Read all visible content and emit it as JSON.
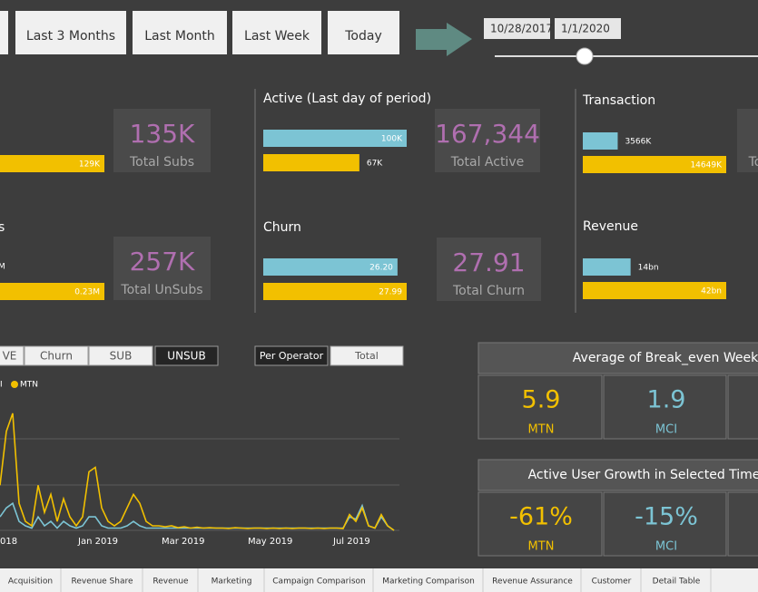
{
  "filters": [
    "Last 3 Months",
    "Last Month",
    "Last Week",
    "Today"
  ],
  "date_range": {
    "start": "10/28/2017",
    "end": "1/1/2020"
  },
  "left_kpis": [
    {
      "bar_labels": [
        "129K"
      ],
      "card_value": "135K",
      "card_label": "Total Subs"
    },
    {
      "title": "s",
      "bar_labels": [
        "M",
        "0.23M"
      ],
      "card_value": "257K",
      "card_label": "Total UnSubs"
    }
  ],
  "kpis": [
    {
      "title": "Active (Last day of period)",
      "values": [
        100000,
        67000
      ],
      "value_labels": [
        "100K",
        "67K"
      ],
      "card_value": "167,344",
      "card_label": "Total Active"
    },
    {
      "title": "Churn",
      "values": [
        26.2,
        27.99
      ],
      "value_labels": [
        "26.20",
        "27.99"
      ],
      "card_value": "27.91",
      "card_label": "Total Churn"
    },
    {
      "title": "Transaction",
      "values": [
        3566000,
        14649000
      ],
      "value_labels": [
        "3566K",
        "14649K"
      ],
      "card_label": "To"
    },
    {
      "title": "Revenue",
      "values": [
        14000000000,
        42000000000
      ],
      "value_labels": [
        "14bn",
        "42bn"
      ]
    }
  ],
  "metric_tabs": [
    "VE",
    "Churn",
    "SUB",
    "UNSUB"
  ],
  "view_tabs": [
    "Per Operator",
    "Total"
  ],
  "chart_data": {
    "type": "line",
    "ylim": [
      0,
      2.9
    ],
    "xtick_labels": [
      "018",
      "Jan 2019",
      "Mar 2019",
      "May 2019",
      "Jul 2019"
    ],
    "series": [
      {
        "name": "MCI",
        "color": "#7cc4d4",
        "values": [
          0.3,
          0.5,
          0.6,
          0.2,
          0.1,
          0.05,
          0.3,
          0.1,
          0.2,
          0.05,
          0.2,
          0.1,
          0.05,
          0.1,
          0.3,
          0.3,
          0.1,
          0.05,
          0.05,
          0.05,
          0.1,
          0.2,
          0.1,
          0.05,
          0.05,
          0.05,
          0.05,
          0.05,
          0.05,
          0.05,
          0.05,
          0.05,
          0.05,
          0.05,
          0.05,
          0.05,
          0.05,
          0.05,
          0.05,
          0.05,
          0.05,
          0.05,
          0.05,
          0.05,
          0.05,
          0.05,
          0.05,
          0.05,
          0.05,
          0.05,
          0.05,
          0.05,
          0.05,
          0.05,
          0.05,
          0.3,
          0.25,
          0.55,
          0.1,
          0.05,
          0.3,
          0.1,
          0.0
        ]
      },
      {
        "name": "MTN",
        "color": "#f2c000",
        "values": [
          1.0,
          2.2,
          2.6,
          0.6,
          0.2,
          0.1,
          1.0,
          0.4,
          0.8,
          0.2,
          0.7,
          0.3,
          0.1,
          0.3,
          1.3,
          1.4,
          0.5,
          0.2,
          0.1,
          0.2,
          0.5,
          0.8,
          0.6,
          0.2,
          0.1,
          0.1,
          0.08,
          0.1,
          0.06,
          0.08,
          0.05,
          0.07,
          0.05,
          0.06,
          0.05,
          0.05,
          0.04,
          0.06,
          0.05,
          0.04,
          0.05,
          0.05,
          0.04,
          0.05,
          0.04,
          0.05,
          0.04,
          0.05,
          0.05,
          0.04,
          0.05,
          0.04,
          0.05,
          0.05,
          0.04,
          0.35,
          0.2,
          0.5,
          0.1,
          0.05,
          0.35,
          0.1,
          0.0
        ]
      }
    ]
  },
  "cards": [
    {
      "title": "Average of Break_even Week",
      "items": [
        {
          "value": "5.9",
          "label": "MTN"
        },
        {
          "value": "1.9",
          "label": "MCI"
        }
      ]
    },
    {
      "title": "Active User Growth in Selected Time Pe",
      "items": [
        {
          "value": "-61%",
          "label": "MTN"
        },
        {
          "value": "-15%",
          "label": "MCI"
        }
      ]
    }
  ],
  "page_tabs": [
    "Acquisition",
    "Revenue Share",
    "Revenue",
    "Marketing",
    "Campaign Comparison",
    "Marketing Comparison",
    "Revenue Assurance",
    "Customer",
    "Detail Table"
  ]
}
